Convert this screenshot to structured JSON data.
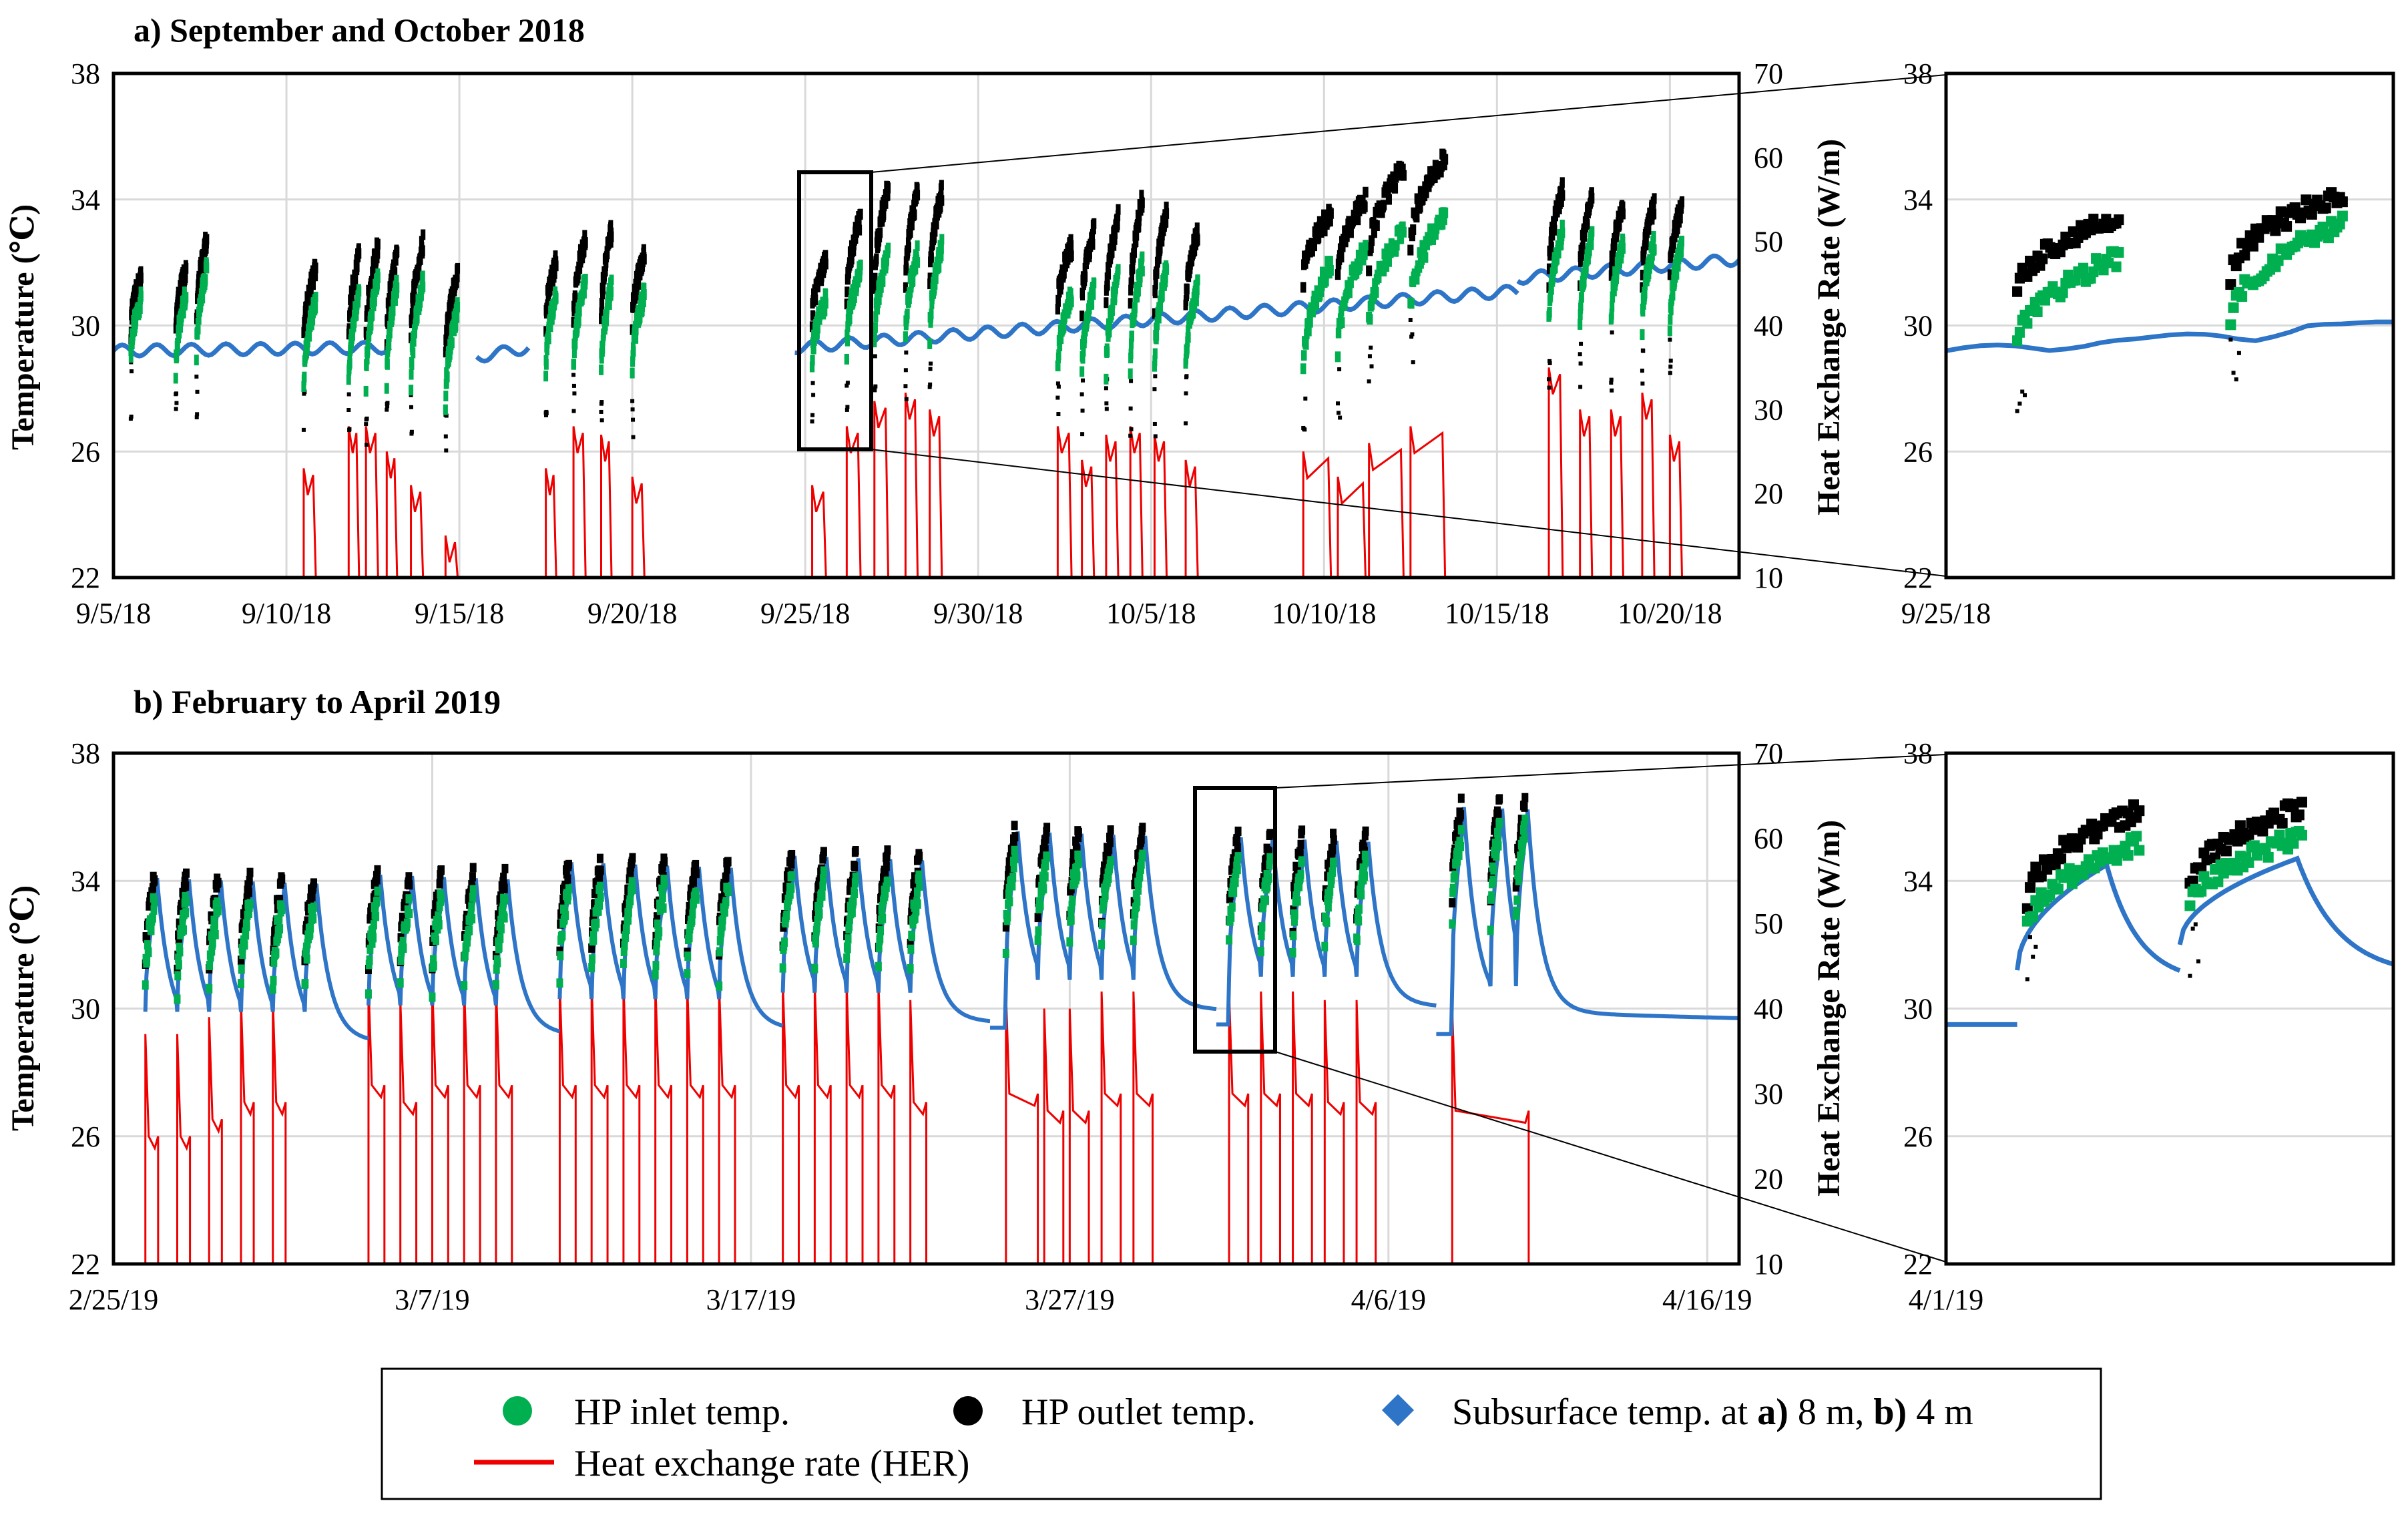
{
  "colors": {
    "inlet": "#00b050",
    "outlet": "#000000",
    "subsurface": "#2e75c8",
    "her": "#ee0000",
    "grid": "#d9d9d9",
    "frame": "#000000"
  },
  "legend": {
    "inlet": "HP inlet temp.",
    "outlet": "HP outlet temp.",
    "subsurface_prefix": "Subsurface  temp. at ",
    "subsurface_a": "a)",
    "subsurface_a_val": " 8 m, ",
    "subsurface_b": "b)",
    "subsurface_b_val": " 4 m",
    "her": "Heat exchange rate (HER)"
  },
  "chart_data": [
    {
      "id": "a-main",
      "type": "scatter",
      "title": "a) September and October 2018",
      "ylabel": "Temperature (℃)",
      "y2label": "Heat Exchange Rate (W/m)",
      "xlim_days": [
        0,
        47
      ],
      "ylim": [
        22,
        38
      ],
      "y2lim": [
        10,
        70
      ],
      "yticks": [
        "22",
        "26",
        "30",
        "34",
        "38"
      ],
      "y2ticks": [
        "10",
        "20",
        "30",
        "40",
        "50",
        "60",
        "70"
      ],
      "xticks": [
        {
          "day": 0,
          "label": "9/5/18"
        },
        {
          "day": 5,
          "label": "9/10/18"
        },
        {
          "day": 10,
          "label": "9/15/18"
        },
        {
          "day": 15,
          "label": "9/20/18"
        },
        {
          "day": 20,
          "label": "9/25/18"
        },
        {
          "day": 25,
          "label": "9/30/18"
        },
        {
          "day": 30,
          "label": "10/5/18"
        },
        {
          "day": 35,
          "label": "10/10/18"
        },
        {
          "day": 40,
          "label": "10/15/18"
        },
        {
          "day": 45,
          "label": "10/20/18"
        }
      ],
      "subsurface_segments": [
        {
          "start": 0,
          "end": 8,
          "base": 29.2,
          "drift": 0.1
        },
        {
          "start": 10.5,
          "end": 12,
          "base": 29.0,
          "drift": 0.3
        },
        {
          "start": 19.7,
          "end": 40.6,
          "base": 29.3,
          "drift": 1.8
        },
        {
          "start": 40.6,
          "end": 47,
          "base": 31.5,
          "drift": 0.6
        }
      ],
      "cycles": [
        {
          "day": 0.5,
          "dur": 0.3,
          "inlet_start": 29,
          "inlet_end": 30.8,
          "outlet_start": 29.8,
          "outlet_end": 31.5,
          "her_peak": 0
        },
        {
          "day": 1.8,
          "dur": 0.3,
          "inlet_start": 28.5,
          "inlet_end": 31,
          "outlet_start": 29.8,
          "outlet_end": 31.8,
          "her_peak": 0
        },
        {
          "day": 2.4,
          "dur": 0.3,
          "inlet_start": 29,
          "inlet_end": 31.8,
          "outlet_start": 30,
          "outlet_end": 32.8,
          "her_peak": 0
        },
        {
          "day": 5.5,
          "dur": 0.35,
          "inlet_start": 28,
          "inlet_end": 30.8,
          "outlet_start": 29.5,
          "outlet_end": 31.8,
          "her_peak": 23
        },
        {
          "day": 6.8,
          "dur": 0.3,
          "inlet_start": 28,
          "inlet_end": 31,
          "outlet_start": 29.5,
          "outlet_end": 32.2,
          "her_peak": 28
        },
        {
          "day": 7.3,
          "dur": 0.35,
          "inlet_start": 28,
          "inlet_end": 31.5,
          "outlet_start": 29.5,
          "outlet_end": 32.5,
          "her_peak": 28
        },
        {
          "day": 7.9,
          "dur": 0.3,
          "inlet_start": 28,
          "inlet_end": 31.3,
          "outlet_start": 29.5,
          "outlet_end": 32.2,
          "her_peak": 25
        },
        {
          "day": 8.6,
          "dur": 0.35,
          "inlet_start": 28,
          "inlet_end": 31.4,
          "outlet_start": 29.5,
          "outlet_end": 32.6,
          "her_peak": 21
        },
        {
          "day": 9.6,
          "dur": 0.35,
          "inlet_start": 27.5,
          "inlet_end": 30.5,
          "outlet_start": 29,
          "outlet_end": 31.6,
          "her_peak": 15
        },
        {
          "day": 12.5,
          "dur": 0.3,
          "inlet_start": 28.5,
          "inlet_end": 31,
          "outlet_start": 30,
          "outlet_end": 32,
          "her_peak": 23
        },
        {
          "day": 13.3,
          "dur": 0.35,
          "inlet_start": 28.5,
          "inlet_end": 31.4,
          "outlet_start": 30,
          "outlet_end": 32.8,
          "her_peak": 28
        },
        {
          "day": 14.1,
          "dur": 0.3,
          "inlet_start": 28.5,
          "inlet_end": 31.2,
          "outlet_start": 30,
          "outlet_end": 33,
          "her_peak": 27
        },
        {
          "day": 15.0,
          "dur": 0.35,
          "inlet_start": 28.5,
          "inlet_end": 31,
          "outlet_start": 30,
          "outlet_end": 32.2,
          "her_peak": 22
        },
        {
          "day": 20.2,
          "dur": 0.4,
          "inlet_start": 28.8,
          "inlet_end": 30.8,
          "outlet_start": 30.2,
          "outlet_end": 32,
          "her_peak": 21
        },
        {
          "day": 21.2,
          "dur": 0.4,
          "inlet_start": 29.2,
          "inlet_end": 31.8,
          "outlet_start": 30.8,
          "outlet_end": 33.4,
          "her_peak": 28
        },
        {
          "day": 22.0,
          "dur": 0.4,
          "inlet_start": 29.4,
          "inlet_end": 32.3,
          "outlet_start": 31,
          "outlet_end": 34.4,
          "her_peak": 31
        },
        {
          "day": 22.9,
          "dur": 0.35,
          "inlet_start": 29.5,
          "inlet_end": 32.3,
          "outlet_start": 31.2,
          "outlet_end": 34.2,
          "her_peak": 32
        },
        {
          "day": 23.6,
          "dur": 0.35,
          "inlet_start": 29.5,
          "inlet_end": 32.5,
          "outlet_start": 31.3,
          "outlet_end": 34.2,
          "her_peak": 30
        },
        {
          "day": 27.3,
          "dur": 0.4,
          "inlet_start": 28.5,
          "inlet_end": 31,
          "outlet_start": 30.5,
          "outlet_end": 32.5,
          "her_peak": 28
        },
        {
          "day": 28.0,
          "dur": 0.35,
          "inlet_start": 28.5,
          "inlet_end": 31.2,
          "outlet_start": 30.5,
          "outlet_end": 33,
          "her_peak": 24
        },
        {
          "day": 28.7,
          "dur": 0.35,
          "inlet_start": 28.5,
          "inlet_end": 31.5,
          "outlet_start": 30.5,
          "outlet_end": 33.4,
          "her_peak": 27
        },
        {
          "day": 29.4,
          "dur": 0.35,
          "inlet_start": 28.5,
          "inlet_end": 32,
          "outlet_start": 30.5,
          "outlet_end": 34,
          "her_peak": 28
        },
        {
          "day": 30.1,
          "dur": 0.35,
          "inlet_start": 28.5,
          "inlet_end": 31.8,
          "outlet_start": 30.5,
          "outlet_end": 33.6,
          "her_peak": 27
        },
        {
          "day": 31.0,
          "dur": 0.35,
          "inlet_start": 28.5,
          "inlet_end": 31.2,
          "outlet_start": 30.5,
          "outlet_end": 33,
          "her_peak": 24
        },
        {
          "day": 34.4,
          "dur": 0.8,
          "inlet_start": 28.5,
          "inlet_end": 32,
          "outlet_start": 31.5,
          "outlet_end": 33.5,
          "her_peak": 25
        },
        {
          "day": 35.4,
          "dur": 0.8,
          "inlet_start": 29,
          "inlet_end": 32.5,
          "outlet_start": 31.5,
          "outlet_end": 34,
          "her_peak": 22
        },
        {
          "day": 36.3,
          "dur": 1.0,
          "inlet_start": 30,
          "inlet_end": 33,
          "outlet_start": 32,
          "outlet_end": 35,
          "her_peak": 26
        },
        {
          "day": 37.5,
          "dur": 1.0,
          "inlet_start": 30.5,
          "inlet_end": 33.5,
          "outlet_start": 32.5,
          "outlet_end": 35.3,
          "her_peak": 28
        },
        {
          "day": 41.5,
          "dur": 0.4,
          "inlet_start": 30,
          "inlet_end": 33,
          "outlet_start": 31.5,
          "outlet_end": 34.3,
          "her_peak": 35
        },
        {
          "day": 42.4,
          "dur": 0.35,
          "inlet_start": 30,
          "inlet_end": 32.8,
          "outlet_start": 31.5,
          "outlet_end": 34,
          "her_peak": 30
        },
        {
          "day": 43.3,
          "dur": 0.35,
          "inlet_start": 30,
          "inlet_end": 32.6,
          "outlet_start": 31.5,
          "outlet_end": 33.8,
          "her_peak": 30
        },
        {
          "day": 44.2,
          "dur": 0.35,
          "inlet_start": 30,
          "inlet_end": 32.6,
          "outlet_start": 31.5,
          "outlet_end": 33.8,
          "her_peak": 32
        },
        {
          "day": 45.0,
          "dur": 0.35,
          "inlet_start": 30,
          "inlet_end": 32.5,
          "outlet_start": 31.5,
          "outlet_end": 33.8,
          "her_peak": 27
        }
      ]
    },
    {
      "id": "a-inset",
      "type": "scatter",
      "title": "",
      "xlim_days": [
        0,
        2.2
      ],
      "ylim": [
        22,
        38
      ],
      "yticks": [
        "22",
        "26",
        "30",
        "34",
        "38"
      ],
      "xticks": [
        {
          "day": 0,
          "label": "9/25/18"
        }
      ],
      "subsurface_segments": [
        {
          "start": 0,
          "end": 2.2,
          "base": 29.2,
          "drift": 0.0
        }
      ],
      "subsurface_bumps": [
        {
          "day": 0.5,
          "rise": 0.5,
          "dur": 0.3
        },
        {
          "day": 1.5,
          "rise": 0.8,
          "dur": 0.3
        }
      ],
      "cycles": [
        {
          "day": 0.35,
          "dur": 0.5,
          "inlet_start": 29.3,
          "inlet_end": 32.2,
          "outlet_start": 31,
          "outlet_end": 33.5,
          "her_peak": 0
        },
        {
          "day": 1.4,
          "dur": 0.55,
          "inlet_start": 30.2,
          "inlet_end": 33.2,
          "outlet_start": 31.5,
          "outlet_end": 34.2,
          "her_peak": 0
        }
      ]
    },
    {
      "id": "b-main",
      "type": "scatter",
      "title": "b) February to April 2019",
      "ylabel": "Temperature (℃)",
      "y2label": "Heat Exchange Rate (W/m)",
      "xlim_days": [
        0,
        51
      ],
      "ylim": [
        22,
        38
      ],
      "y2lim": [
        10,
        70
      ],
      "yticks": [
        "22",
        "26",
        "30",
        "34",
        "38"
      ],
      "y2ticks": [
        "10",
        "20",
        "30",
        "40",
        "50",
        "60",
        "70"
      ],
      "xticks": [
        {
          "day": 0,
          "label": "2/25/19"
        },
        {
          "day": 10,
          "label": "3/7/19"
        },
        {
          "day": 20,
          "label": "3/17/19"
        },
        {
          "day": 30,
          "label": "3/27/19"
        },
        {
          "day": 40,
          "label": "4/6/19"
        },
        {
          "day": 50,
          "label": "4/16/19"
        }
      ],
      "decay_groups": [
        {
          "start": 1,
          "end": 8,
          "floor": 28.4,
          "peak": 33.5,
          "cycle_days": [
            1.0,
            2.0,
            3.0,
            4.0,
            5.0,
            6.0
          ]
        },
        {
          "start": 8,
          "end": 14,
          "floor": 28.6,
          "peak": 33.6,
          "cycle_days": [
            8.0,
            9.0,
            10.0,
            11.0,
            12.0
          ]
        },
        {
          "start": 14,
          "end": 21,
          "floor": 28.8,
          "peak": 34.0,
          "cycle_days": [
            14.0,
            15.0,
            16.0,
            17.0,
            18.0,
            19.0
          ]
        },
        {
          "start": 21,
          "end": 27.5,
          "floor": 29.0,
          "peak": 34.2,
          "cycle_days": [
            21.0,
            22.0,
            23.0,
            24.0,
            25.0
          ]
        },
        {
          "start": 27.5,
          "end": 34.6,
          "floor": 29.4,
          "peak": 35.0,
          "cycle_days": [
            28.0,
            29.0,
            30.0,
            31.0,
            32.0
          ]
        },
        {
          "start": 34.6,
          "end": 41.5,
          "floor": 29.5,
          "peak": 34.8,
          "cycle_days": [
            35.0,
            36.0,
            37.0,
            38.0,
            39.0
          ]
        },
        {
          "start": 41.5,
          "end": 51,
          "floor": 29.2,
          "peak": 35.8,
          "cycle_days": [
            42.0,
            43.2,
            44.0
          ]
        }
      ],
      "her_rects": [
        {
          "day": 1.0,
          "w": 0.4,
          "level": 25
        },
        {
          "day": 2.0,
          "w": 0.4,
          "level": 25
        },
        {
          "day": 3.0,
          "w": 0.4,
          "level": 27
        },
        {
          "day": 4.0,
          "w": 0.4,
          "level": 29
        },
        {
          "day": 5.0,
          "w": 0.4,
          "level": 29
        },
        {
          "day": 8.0,
          "w": 0.5,
          "level": 31
        },
        {
          "day": 9.0,
          "w": 0.5,
          "level": 29
        },
        {
          "day": 10.0,
          "w": 0.5,
          "level": 31
        },
        {
          "day": 11.0,
          "w": 0.5,
          "level": 31
        },
        {
          "day": 12.0,
          "w": 0.5,
          "level": 31
        },
        {
          "day": 14.0,
          "w": 0.5,
          "level": 31
        },
        {
          "day": 15.0,
          "w": 0.5,
          "level": 31
        },
        {
          "day": 16.0,
          "w": 0.5,
          "level": 31
        },
        {
          "day": 17.0,
          "w": 0.5,
          "level": 31
        },
        {
          "day": 18.0,
          "w": 0.5,
          "level": 31
        },
        {
          "day": 19.0,
          "w": 0.5,
          "level": 31
        },
        {
          "day": 21.0,
          "w": 0.5,
          "level": 31
        },
        {
          "day": 22.0,
          "w": 0.5,
          "level": 31
        },
        {
          "day": 23.0,
          "w": 0.5,
          "level": 31
        },
        {
          "day": 24.0,
          "w": 0.5,
          "level": 31
        },
        {
          "day": 25.0,
          "w": 0.5,
          "level": 29
        },
        {
          "day": 28.0,
          "w": 1.0,
          "level": 30
        },
        {
          "day": 29.2,
          "w": 0.6,
          "level": 28
        },
        {
          "day": 30.0,
          "w": 0.6,
          "level": 28
        },
        {
          "day": 31.0,
          "w": 0.6,
          "level": 30
        },
        {
          "day": 32.0,
          "w": 0.6,
          "level": 30
        },
        {
          "day": 35.0,
          "w": 0.6,
          "level": 30
        },
        {
          "day": 36.0,
          "w": 0.6,
          "level": 30
        },
        {
          "day": 37.0,
          "w": 0.6,
          "level": 30
        },
        {
          "day": 38.0,
          "w": 0.6,
          "level": 29
        },
        {
          "day": 39.0,
          "w": 0.6,
          "level": 29
        },
        {
          "day": 42.0,
          "w": 2.4,
          "level": 28
        }
      ]
    },
    {
      "id": "b-inset",
      "type": "scatter",
      "title": "",
      "xlim_days": [
        0,
        2.2
      ],
      "ylim": [
        22,
        38
      ],
      "yticks": [
        "22",
        "26",
        "30",
        "34",
        "38"
      ],
      "xticks": [
        {
          "day": 0,
          "label": "4/1/19"
        }
      ],
      "subsurface_decay": [
        {
          "start": 0,
          "end": 0.35,
          "value": 29.5
        },
        {
          "start": 0.35,
          "end": 1.15,
          "from": 31.2,
          "to": 34.5,
          "decay_to": 30.8
        },
        {
          "start": 1.15,
          "end": 2.2,
          "from": 32.0,
          "to": 34.7,
          "decay_to": 31.0
        }
      ],
      "cycles": [
        {
          "day": 0.4,
          "dur": 0.55,
          "inlet_start": 32.5,
          "inlet_end": 35.2,
          "outlet_start": 33.4,
          "outlet_end": 36.2,
          "her_peak": 0
        },
        {
          "day": 1.2,
          "dur": 0.55,
          "inlet_start": 33.0,
          "inlet_end": 35.4,
          "outlet_start": 33.8,
          "outlet_end": 36.3,
          "her_peak": 0
        }
      ]
    }
  ],
  "panel_titles": {
    "a": "a) September and October 2018",
    "b": "b) February to April 2019"
  },
  "axis_labels": {
    "a_ylabel": "Temperature (℃)",
    "a_y2label": "Heat Exchange Rate (W/m)",
    "b_ylabel": "Temperature (℃)",
    "b_y2label": "Heat Exchange Rate (W/m)"
  }
}
